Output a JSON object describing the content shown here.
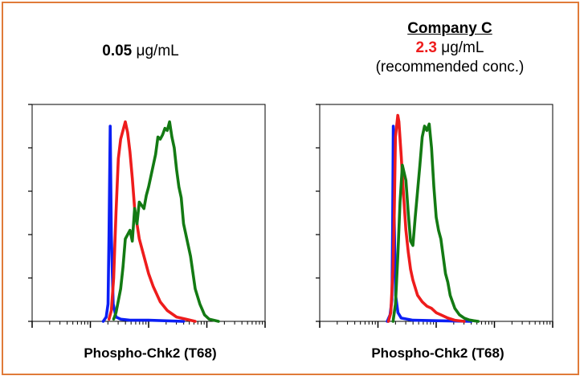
{
  "colors": {
    "border": "#E07B39",
    "blue_series": "#0B1FF5",
    "red_series": "#EE1C1C",
    "green_series": "#137A13",
    "concentration_highlight": "#EE1C1C"
  },
  "panels": [
    {
      "header": {
        "company": "",
        "conc_value": "0.05",
        "conc_unit": " μg/mL",
        "note": ""
      },
      "xlabel": "Phospho-Chk2 (T68)"
    },
    {
      "header": {
        "company": "Company C",
        "conc_value": "2.3",
        "conc_unit": " μg/mL",
        "note": "(recommended conc.)"
      },
      "xlabel": "Phospho-Chk2 (T68)"
    }
  ],
  "chart_data": [
    {
      "type": "line",
      "title": "0.05 μg/mL",
      "xlabel": "Phospho-Chk2 (T68)",
      "ylabel": "",
      "xlim": [
        0,
        100
      ],
      "ylim": [
        0,
        100
      ],
      "grid": false,
      "legend": "none",
      "series": [
        {
          "color": "#0B1FF5",
          "x": [
            30.5,
            31.8,
            32.6,
            33.0,
            33.5,
            34.0,
            34.8,
            36.0,
            38.0,
            42.0,
            50.0,
            65.0
          ],
          "y": [
            0,
            2,
            8,
            40,
            90,
            40,
            8,
            2,
            1,
            0.5,
            0.5,
            0
          ]
        },
        {
          "color": "#EE1C1C",
          "x": [
            33.0,
            34.0,
            35.0,
            36.0,
            37.0,
            38.0,
            39.0,
            40.0,
            41.0,
            42.0,
            43.0,
            44.0,
            46.0,
            48.0,
            50.0,
            52.0,
            55.0,
            58.0,
            62.0,
            66.0,
            70.0
          ],
          "y": [
            1,
            5,
            20,
            50,
            75,
            84,
            88,
            92,
            87,
            78,
            66,
            52,
            38,
            30,
            22,
            16,
            9,
            5,
            2,
            1,
            0
          ]
        },
        {
          "color": "#137A13",
          "x": [
            35.0,
            36.0,
            38.0,
            39.0,
            40.0,
            42.0,
            43.0,
            44.0,
            45.0,
            46.0,
            48.0,
            49.0,
            50.0,
            52.0,
            53.0,
            54.0,
            55.0,
            56.0,
            57.0,
            58.0,
            59.0,
            60.0,
            61.0,
            62.0,
            63.0,
            64.0,
            65.0,
            67.0,
            68.0,
            70.0,
            72.0,
            74.0,
            76.0,
            78.0,
            80.0
          ],
          "y": [
            1,
            4,
            15,
            25,
            38,
            42,
            37,
            52,
            45,
            55,
            52,
            58,
            62,
            72,
            77,
            85,
            84,
            86,
            89,
            88,
            92,
            85,
            80,
            70,
            62,
            57,
            45,
            35,
            30,
            15,
            8,
            3,
            1,
            0.5,
            0
          ]
        }
      ]
    },
    {
      "type": "line",
      "title": "Company C 2.3 μg/mL (recommended conc.)",
      "xlabel": "Phospho-Chk2 (T68)",
      "ylabel": "",
      "xlim": [
        0,
        100
      ],
      "ylim": [
        0,
        100
      ],
      "grid": false,
      "legend": "none",
      "series": [
        {
          "color": "#0B1FF5",
          "x": [
            29.0,
            30.2,
            31.0,
            31.3,
            31.6,
            32.0,
            32.6,
            33.6,
            35.0,
            40.0,
            50.0,
            65.0
          ],
          "y": [
            0,
            3,
            10,
            45,
            90,
            45,
            12,
            4,
            1.5,
            0.5,
            0.3,
            0
          ]
        },
        {
          "color": "#EE1C1C",
          "x": [
            29.5,
            30.5,
            31.5,
            32.0,
            32.5,
            33.5,
            34.0,
            35.0,
            36.0,
            37.0,
            38.0,
            39.0,
            40.0,
            42.0,
            44.0,
            46.0,
            48.0,
            50.0,
            52.0,
            55.0,
            58.0,
            62.0
          ],
          "y": [
            0,
            4,
            25,
            50,
            85,
            95,
            92,
            76,
            58,
            42,
            32,
            24,
            19,
            12,
            9,
            7,
            6,
            4,
            3,
            1.5,
            0.5,
            0
          ]
        },
        {
          "color": "#137A13",
          "x": [
            31.5,
            32.5,
            33.5,
            34.5,
            35.5,
            37.0,
            38.0,
            39.0,
            40.0,
            41.0,
            42.0,
            43.0,
            44.0,
            45.0,
            46.0,
            47.0,
            48.0,
            49.0,
            50.0,
            51.0,
            52.0,
            53.0,
            54.0,
            55.0,
            56.0,
            58.0,
            60.0,
            62.0,
            64.0,
            66.0,
            68.0
          ],
          "y": [
            0,
            8,
            30,
            55,
            72,
            65,
            50,
            37,
            35,
            48,
            60,
            72,
            85,
            90,
            88,
            91,
            80,
            62,
            48,
            42,
            38,
            30,
            22,
            18,
            12,
            6,
            3,
            1.5,
            0.7,
            0.3,
            0
          ]
        }
      ]
    }
  ]
}
